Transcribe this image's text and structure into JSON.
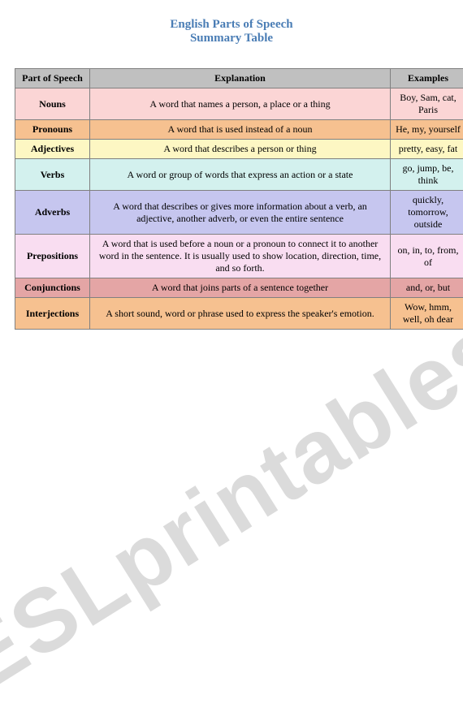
{
  "title_line1": "English Parts of Speech",
  "title_line2": "Summary Table",
  "title_color": "#4a7db5",
  "title_fontsize": 15,
  "body_fontsize": 12,
  "header_bg": "#c0c0c0",
  "border_color": "#808080",
  "watermark_text": "ESLprintables",
  "watermark_color": "#bfbfbf",
  "columns": [
    "Part of Speech",
    "Explanation",
    "Examples"
  ],
  "rows": [
    {
      "part": "Nouns",
      "explanation": "A word that names a person, a place or a thing",
      "examples": "Boy, Sam, cat, Paris",
      "bg": "#fbd5d5"
    },
    {
      "part": "Pronouns",
      "explanation": "A word that is used instead of a noun",
      "examples": "He, my, yourself",
      "bg": "#f6c190"
    },
    {
      "part": "Adjectives",
      "explanation": "A word that describes a person or thing",
      "examples": "pretty, easy, fat",
      "bg": "#fdf7c3"
    },
    {
      "part": "Verbs",
      "explanation": "A word or group of words that express an action or a state",
      "examples": "go, jump, be, think",
      "bg": "#d3f1ee"
    },
    {
      "part": "Adverbs",
      "explanation": "A word that describes or gives more information about a verb, an adjective, another adverb, or even the entire sentence",
      "examples": "quickly, tomorrow, outside",
      "bg": "#c6c6ef"
    },
    {
      "part": "Prepositions",
      "explanation": "A word that is used before a noun or a pronoun to connect it to another word in the sentence. It is usually used to show location, direction, time, and so forth.",
      "examples": "on, in, to, from, of",
      "bg": "#f9ddf1"
    },
    {
      "part": "Conjunctions",
      "explanation": "A word that joins parts of a sentence together",
      "examples": "and, or, but",
      "bg": "#e4a5a5"
    },
    {
      "part": "Interjections",
      "explanation": "A short sound, word or phrase used to express the speaker's emotion.",
      "examples": "Wow, hmm, well, oh dear",
      "bg": "#f6c190"
    }
  ]
}
